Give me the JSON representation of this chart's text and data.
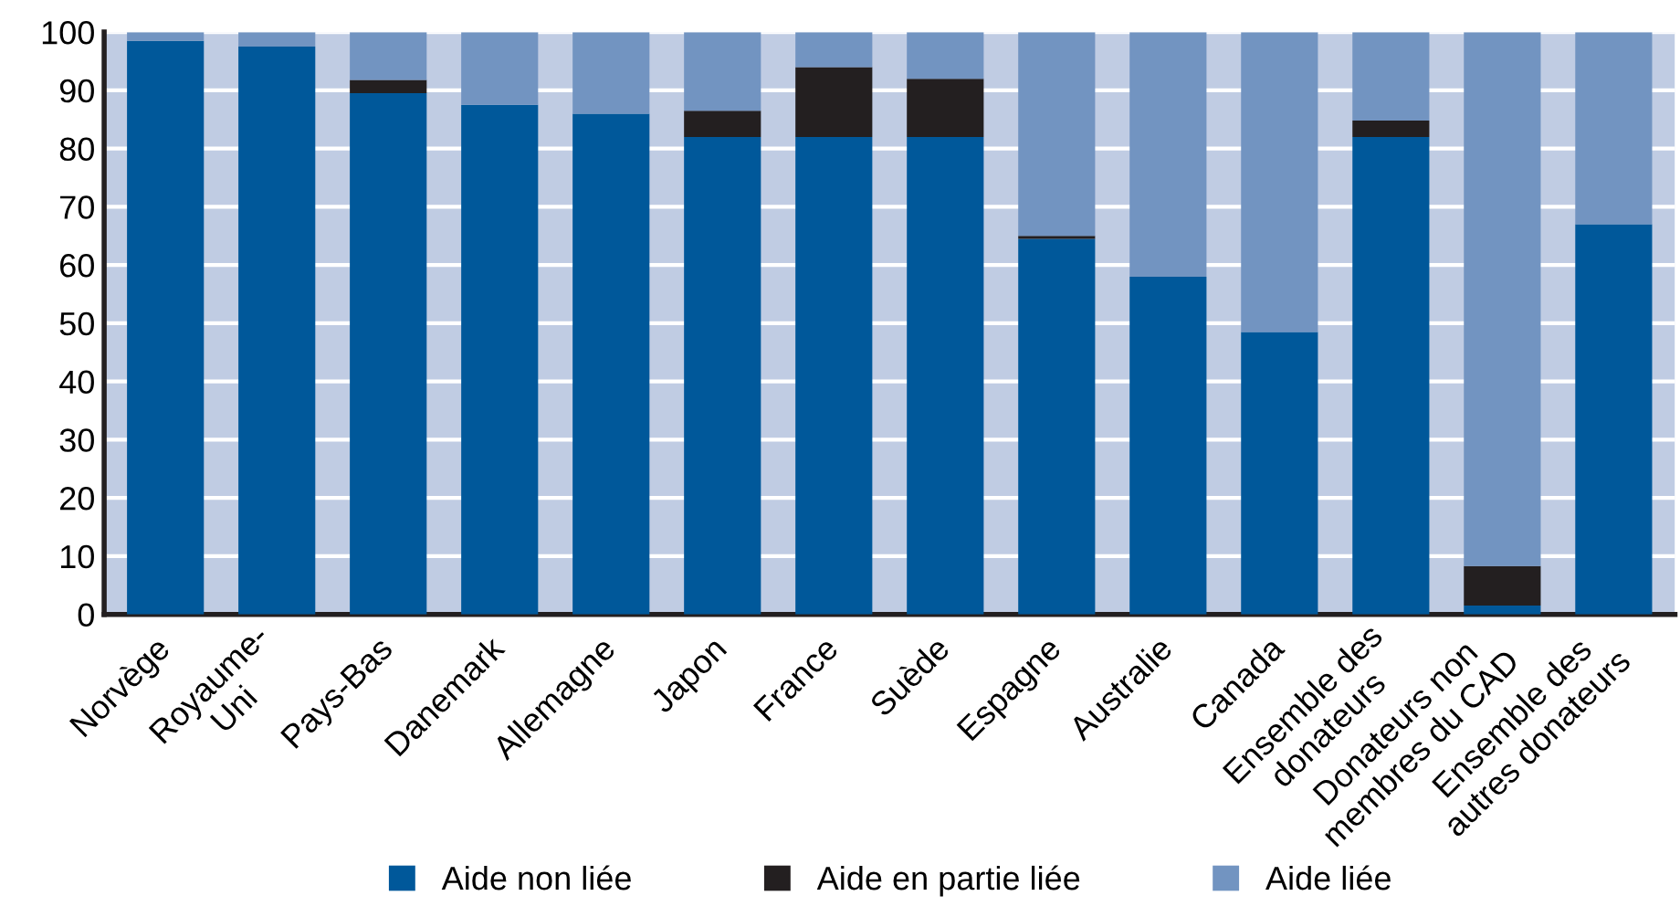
{
  "chart_data": {
    "type": "bar",
    "stacked": true,
    "categories": [
      "Norvège",
      "Royaume-\nUni",
      "Pays-Bas",
      "Danemark",
      "Allemagne",
      "Japon",
      "France",
      "Suède",
      "Espagne",
      "Australie",
      "Canada",
      "Ensemble des\ndonateurs",
      "Donateurs non\nmembres du CAD",
      "Ensemble des\nautres donateurs"
    ],
    "series": [
      {
        "name": "Aide non liée",
        "color": "#00589a",
        "values": [
          98.5,
          97.5,
          89.5,
          87.5,
          86,
          82,
          82,
          82,
          64.5,
          58,
          48.5,
          82,
          1.5,
          67
        ]
      },
      {
        "name": "Aide en partie liée",
        "color": "#231f20",
        "values": [
          0,
          0,
          2.3,
          0,
          0,
          4.5,
          12,
          10,
          0.5,
          0,
          0,
          2.8,
          6.8,
          0
        ]
      },
      {
        "name": "Aide liée",
        "color": "#7294c1",
        "values": [
          1.5,
          2.5,
          8.2,
          12.5,
          14,
          13.5,
          6,
          8,
          35,
          42,
          51.5,
          15.2,
          91.7,
          33
        ]
      }
    ],
    "ylim": [
      0,
      100
    ],
    "yticks": [
      0,
      10,
      20,
      30,
      40,
      50,
      60,
      70,
      80,
      90,
      100
    ],
    "bands": [
      {
        "axis": "y",
        "from": 0,
        "to": 100,
        "color": "#c0cce3"
      }
    ],
    "grid": "y",
    "legend": "bottom"
  }
}
